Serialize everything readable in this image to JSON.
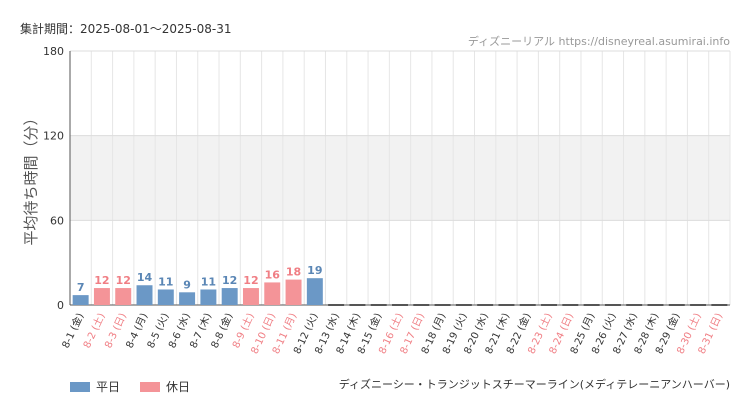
{
  "header": {
    "period": "集計期間：2025-08-01～2025-08-31",
    "credit": "ディズニーリアル https://disneyreal.asumirai.info"
  },
  "footer": {
    "attraction": "ディズニーシー・トランジットスチーマーライン(メディテレーニアンハーバー)"
  },
  "colors": {
    "weekday": "#6b98c6",
    "holiday": "#f49498",
    "weekday_text": "#5a86b5",
    "holiday_text": "#f07e84",
    "band": "#f2f2f2"
  },
  "chart_data": {
    "type": "bar",
    "ylabel": "平均待ち時間（分）",
    "ylim": [
      0,
      180
    ],
    "yticks": [
      0,
      60,
      120,
      180
    ],
    "shaded_band": [
      60,
      120
    ],
    "grid": true,
    "categories": [
      "8-1 (金)",
      "8-2 (土)",
      "8-3 (日)",
      "8-4 (月)",
      "8-5 (火)",
      "8-6 (水)",
      "8-7 (木)",
      "8-8 (金)",
      "8-9 (土)",
      "8-10 (日)",
      "8-11 (月)",
      "8-12 (火)",
      "8-13 (水)",
      "8-14 (木)",
      "8-15 (金)",
      "8-16 (土)",
      "8-17 (日)",
      "8-18 (月)",
      "8-19 (火)",
      "8-20 (水)",
      "8-21 (木)",
      "8-22 (金)",
      "8-23 (土)",
      "8-24 (日)",
      "8-25 (月)",
      "8-26 (火)",
      "8-27 (水)",
      "8-28 (木)",
      "8-29 (金)",
      "8-30 (土)",
      "8-31 (日)"
    ],
    "values": [
      7,
      12,
      12,
      14,
      11,
      9,
      11,
      12,
      12,
      16,
      18,
      19,
      null,
      null,
      null,
      null,
      null,
      null,
      null,
      null,
      null,
      null,
      null,
      null,
      null,
      null,
      null,
      null,
      null,
      null,
      null
    ],
    "day_type": [
      "weekday",
      "holiday",
      "holiday",
      "weekday",
      "weekday",
      "weekday",
      "weekday",
      "weekday",
      "holiday",
      "holiday",
      "holiday",
      "weekday",
      "weekday",
      "weekday",
      "weekday",
      "holiday",
      "holiday",
      "weekday",
      "weekday",
      "weekday",
      "weekday",
      "weekday",
      "holiday",
      "holiday",
      "weekday",
      "weekday",
      "weekday",
      "weekday",
      "weekday",
      "holiday",
      "holiday"
    ],
    "legend": [
      {
        "name": "平日",
        "type": "weekday"
      },
      {
        "name": "休日",
        "type": "holiday"
      }
    ],
    "legend_position": "bottom-left"
  }
}
